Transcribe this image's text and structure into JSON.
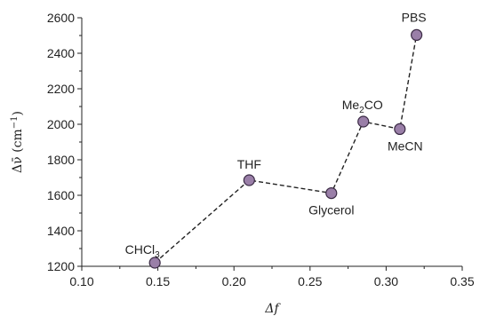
{
  "chart_data": {
    "type": "scatter",
    "connect": "dashed-line",
    "xlabel": "Δf",
    "ylabel": {
      "main": "Δν̄",
      "unit_base": "(cm",
      "unit_sup": "−1",
      "unit_end": ")"
    },
    "xlim": [
      0.1,
      0.35
    ],
    "ylim": [
      1200,
      2600
    ],
    "xticks": [
      "0.10",
      "0.15",
      "0.20",
      "0.25",
      "0.30",
      "0.35"
    ],
    "yticks": [
      "1200",
      "1400",
      "1600",
      "1800",
      "2000",
      "2200",
      "2400",
      "2600"
    ],
    "grid": false,
    "points": [
      {
        "label": "CHCl",
        "sub": "3",
        "label_after": "",
        "x": 0.148,
        "y": 1220
      },
      {
        "label": "THF",
        "sub": "",
        "label_after": "",
        "x": 0.21,
        "y": 1685
      },
      {
        "label": "Glycerol",
        "sub": "",
        "label_after": "",
        "x": 0.264,
        "y": 1612
      },
      {
        "label": "Me",
        "sub": "2",
        "label_after": "CO",
        "x": 0.285,
        "y": 2015
      },
      {
        "label": "MeCN",
        "sub": "",
        "label_after": "",
        "x": 0.309,
        "y": 1973
      },
      {
        "label": "PBS",
        "sub": "",
        "label_after": "",
        "x": 0.32,
        "y": 2503
      }
    ],
    "colors": {
      "marker_fill": "#9a7fa8",
      "marker_stroke": "#3a2a44",
      "line": "#222222",
      "axis": "#222222"
    }
  }
}
